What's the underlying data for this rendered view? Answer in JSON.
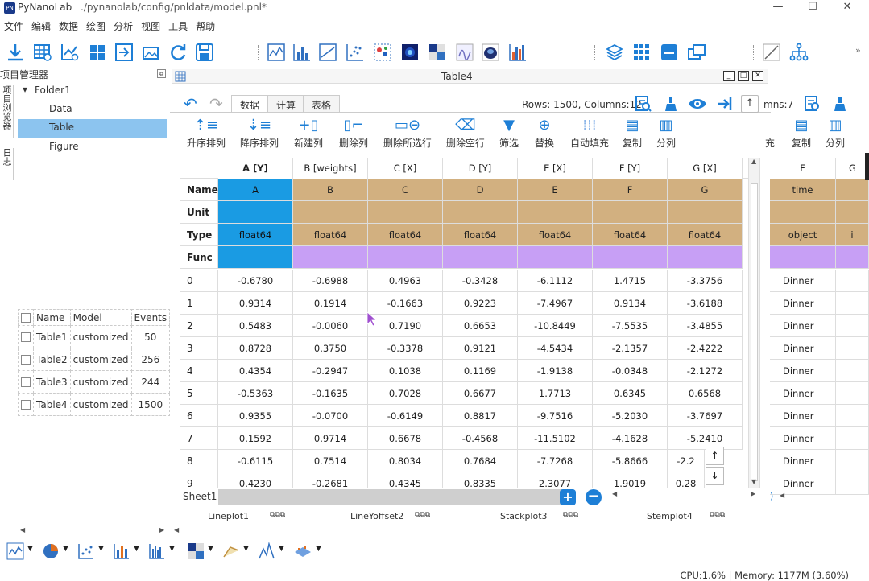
{
  "window": {
    "app_title": "PyNanoLab",
    "file_path": "./pynanolab/config/pnldata/model.pnl*",
    "app_icon_text": "PN"
  },
  "menu": [
    "文件",
    "编辑",
    "数据",
    "绘图",
    "分析",
    "视图",
    "工具",
    "帮助"
  ],
  "left_panel": {
    "title": "项目管理器",
    "vertical_tabs": [
      "项目浏览器",
      "日志"
    ],
    "tree": {
      "folder": "Folder1",
      "items": [
        "Data",
        "Table",
        "Figure"
      ],
      "selected": "Table"
    },
    "table": {
      "headers": [
        "Name",
        "Model",
        "Events"
      ],
      "rows": [
        {
          "name": "Table1",
          "model": "customized",
          "events": "50"
        },
        {
          "name": "Table2",
          "model": "customized",
          "events": "256"
        },
        {
          "name": "Table3",
          "model": "customized",
          "events": "244"
        },
        {
          "name": "Table4",
          "model": "customized",
          "events": "1500"
        }
      ]
    }
  },
  "subwindow": {
    "title": "Table4",
    "tabs": [
      "数据",
      "计算",
      "表格"
    ],
    "active_tab": "数据",
    "info": "Rows: 1500, Columns:12",
    "info_right": "mns:7",
    "ribbon": [
      "升序排列",
      "降序排列",
      "新建列",
      "删除列",
      "删除所选行",
      "删除空行",
      "筛选",
      "替换",
      "自动填充",
      "复制",
      "分列"
    ],
    "ribbon_right": [
      "复制",
      "分列"
    ],
    "ribbon_right_partial": "充",
    "sheet_tab": "Sheet1"
  },
  "grid": {
    "column_headers": [
      "A [Y]",
      "B [weights]",
      "C [X]",
      "D [Y]",
      "E [X]",
      "F [Y]",
      "G [X]"
    ],
    "meta_labels": [
      "Name",
      "Unit",
      "Type",
      "Func"
    ],
    "names": [
      "A",
      "B",
      "C",
      "D",
      "E",
      "F",
      "G"
    ],
    "types": [
      "float64",
      "float64",
      "float64",
      "float64",
      "float64",
      "float64",
      "float64"
    ],
    "row_indices": [
      "0",
      "1",
      "2",
      "3",
      "4",
      "5",
      "6",
      "7",
      "8",
      "9"
    ],
    "rows": [
      [
        "-0.6780",
        "-0.6988",
        "0.4963",
        "-0.3428",
        "-6.1112",
        "1.4715",
        "-3.3756"
      ],
      [
        "0.9314",
        "0.1914",
        "-0.1663",
        "0.9223",
        "-7.4967",
        "0.9134",
        "-3.6188"
      ],
      [
        "0.5483",
        "-0.0060",
        "0.7190",
        "0.6653",
        "-10.8449",
        "-7.5535",
        "-3.4855"
      ],
      [
        "0.8728",
        "0.3750",
        "-0.3378",
        "0.9121",
        "-4.5434",
        "-2.1357",
        "-2.4222"
      ],
      [
        "0.4354",
        "-0.2947",
        "0.1038",
        "0.1169",
        "-1.9138",
        "-0.0348",
        "-2.1272"
      ],
      [
        "-0.5363",
        "-0.1635",
        "0.7028",
        "0.6677",
        "1.7713",
        "0.6345",
        "0.6568"
      ],
      [
        "0.9355",
        "-0.0700",
        "-0.6149",
        "0.8817",
        "-9.7516",
        "-5.2030",
        "-3.7697"
      ],
      [
        "0.1592",
        "0.9714",
        "0.6678",
        "-0.4568",
        "-11.5102",
        "-4.1628",
        "-5.2410"
      ],
      [
        "-0.6115",
        "0.7514",
        "0.8034",
        "0.7684",
        "-7.7268",
        "-5.8666",
        "-2.2"
      ],
      [
        "0.4230",
        "-0.2681",
        "0.4345",
        "0.8335",
        "2.3077",
        "1.9019",
        "0.28"
      ]
    ],
    "right_pane": {
      "column_headers": [
        "F",
        "G"
      ],
      "name": "time",
      "type": "object",
      "type_partial": "i",
      "values": [
        "Dinner",
        "Dinner",
        "Dinner",
        "Dinner",
        "Dinner",
        "Dinner",
        "Dinner",
        "Dinner",
        "Dinner",
        "Dinner"
      ]
    }
  },
  "bottom_tabs": [
    "Lineplot1",
    "LineYoffset2",
    "Stackplot3",
    "Stemplot4"
  ],
  "status": "CPU:1.6% | Memory: 1177M (3.60%)",
  "colors": {
    "selected_column": "#1a9be3",
    "name_row": "#d2b080",
    "func_row": "#c79ff5",
    "tree_selected": "#8cc4ef",
    "icon_blue": "#1e7fd6"
  }
}
